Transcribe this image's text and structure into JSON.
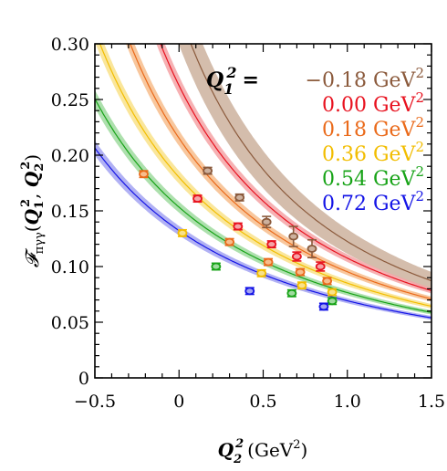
{
  "chart_data": {
    "type": "line",
    "xlabel": "Q_2^2 (GeV^2)",
    "ylabel": "F_{πγγ}(Q_1^2, Q_2^2)",
    "xlim": [
      -0.5,
      1.5
    ],
    "ylim": [
      0,
      0.3
    ],
    "x_ticks": [
      "−0.5",
      "0",
      "0.5",
      "1.0",
      "1.5"
    ],
    "y_ticks": [
      "0",
      "0.05",
      "0.10",
      "0.15",
      "0.20",
      "0.25",
      "0.30"
    ],
    "grid": false,
    "legend_title": "Q_1^2 =",
    "legend_position": "top-right",
    "series": [
      {
        "name": "−0.18 GeV^2",
        "q1": -0.18,
        "color": "#8b5a3c",
        "band_color": "#cdb19e",
        "points": [
          [
            0.17,
            0.186
          ],
          [
            0.36,
            0.162
          ],
          [
            0.52,
            0.14
          ],
          [
            0.68,
            0.127
          ],
          [
            0.79,
            0.116
          ]
        ],
        "errors": [
          0.003,
          0.003,
          0.005,
          0.009,
          0.008
        ]
      },
      {
        "name": "0.00 GeV^2",
        "q1": 0.0,
        "color": "#e8121f",
        "band_color": "#f5a3a6",
        "points": [
          [
            0.11,
            0.161
          ],
          [
            0.35,
            0.136
          ],
          [
            0.55,
            0.12
          ],
          [
            0.7,
            0.109
          ],
          [
            0.84,
            0.1
          ]
        ],
        "errors": [
          0.003,
          0.003,
          0.003,
          0.004,
          0.004
        ]
      },
      {
        "name": "0.18 GeV^2",
        "q1": 0.18,
        "color": "#ea6a1a",
        "band_color": "#f7bd8c",
        "points": [
          [
            -0.21,
            0.183
          ],
          [
            0.3,
            0.122
          ],
          [
            0.53,
            0.104
          ],
          [
            0.72,
            0.095
          ],
          [
            0.88,
            0.087
          ]
        ],
        "errors": [
          0.003,
          0.003,
          0.003,
          0.003,
          0.003
        ]
      },
      {
        "name": "0.36 GeV^2",
        "q1": 0.36,
        "color": "#f2bd00",
        "band_color": "#f9e28a",
        "points": [
          [
            0.02,
            0.13
          ],
          [
            0.49,
            0.094
          ],
          [
            0.73,
            0.083
          ],
          [
            0.91,
            0.077
          ]
        ],
        "errors": [
          0.003,
          0.003,
          0.003,
          0.003
        ]
      },
      {
        "name": "0.54 GeV^2",
        "q1": 0.54,
        "color": "#17a317",
        "band_color": "#9fdb9f",
        "points": [
          [
            0.22,
            0.1
          ],
          [
            0.67,
            0.076
          ],
          [
            0.91,
            0.069
          ]
        ],
        "errors": [
          0.003,
          0.003,
          0.003
        ]
      },
      {
        "name": "0.72 GeV^2",
        "q1": 0.72,
        "color": "#1414e6",
        "band_color": "#a3a3f2",
        "points": [
          [
            0.42,
            0.078
          ],
          [
            0.86,
            0.064
          ]
        ],
        "errors": [
          0.003,
          0.003
        ]
      }
    ]
  }
}
